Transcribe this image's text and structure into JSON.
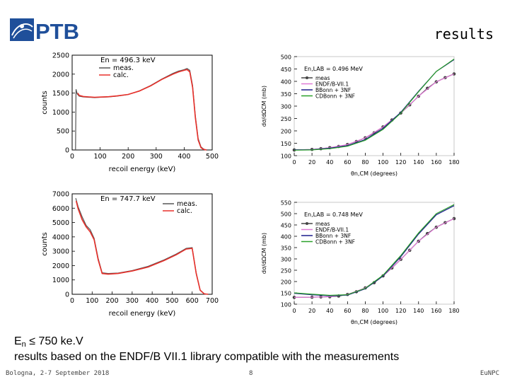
{
  "header": {
    "logo_text": "PTB",
    "title": "results",
    "colors": {
      "logo": "#1f4f9a"
    }
  },
  "captions": {
    "energy_prefix": "E",
    "energy_sub": "n",
    "energy_rest": " ≤ 750 ke.V",
    "note": "results based on the ENDF/B VII.1 library compatible with the measurements"
  },
  "footer": {
    "left": "Bologna, 2-7 September 2018",
    "page": "8",
    "right": "EuNPC"
  },
  "chart_data": [
    {
      "type": "line",
      "annotation": "En = 496.3 keV",
      "xlabel": "recoil energy (keV)",
      "ylabel": "counts",
      "xlim": [
        0,
        500
      ],
      "ylim": [
        0,
        2500
      ],
      "xticks": [
        0,
        100,
        200,
        300,
        400,
        500
      ],
      "yticks": [
        0,
        500,
        1000,
        1500,
        2000,
        2500
      ],
      "legend_position": "top-left",
      "series": [
        {
          "name": "meas.",
          "color": "#555555",
          "x": [
            12,
            14,
            18,
            25,
            40,
            60,
            80,
            100,
            130,
            160,
            200,
            240,
            280,
            320,
            360,
            380,
            400,
            410,
            420,
            430,
            440,
            450,
            460,
            470,
            480
          ],
          "y": [
            0,
            1600,
            1480,
            1420,
            1400,
            1390,
            1380,
            1390,
            1400,
            1420,
            1460,
            1560,
            1700,
            1870,
            2020,
            2080,
            2120,
            2150,
            2100,
            1700,
            900,
            300,
            80,
            20,
            0
          ]
        },
        {
          "name": "calc.",
          "color": "#e8302a",
          "x": [
            20,
            25,
            40,
            60,
            80,
            100,
            130,
            160,
            200,
            240,
            280,
            320,
            360,
            380,
            400,
            410,
            420,
            430,
            440,
            450,
            460,
            470,
            480
          ],
          "y": [
            1500,
            1440,
            1410,
            1400,
            1390,
            1395,
            1405,
            1425,
            1465,
            1555,
            1690,
            1860,
            2000,
            2060,
            2100,
            2120,
            2060,
            1650,
            850,
            260,
            60,
            15,
            0
          ]
        }
      ]
    },
    {
      "type": "line",
      "annotation": "En = 747.7 keV",
      "xlabel": "recoil energy (keV)",
      "ylabel": "counts",
      "xlim": [
        0,
        700
      ],
      "ylim": [
        0,
        7000
      ],
      "xticks": [
        0,
        100,
        200,
        300,
        400,
        500,
        600,
        700
      ],
      "yticks": [
        0,
        1000,
        2000,
        3000,
        4000,
        5000,
        6000,
        7000
      ],
      "legend_position": "top-right",
      "series": [
        {
          "name": "meas.",
          "color": "#555555",
          "x": [
            18,
            30,
            50,
            70,
            90,
            110,
            130,
            150,
            180,
            230,
            300,
            380,
            460,
            520,
            570,
            600,
            620,
            640,
            660,
            680
          ],
          "y": [
            6700,
            6100,
            5400,
            4800,
            4500,
            3900,
            2500,
            1500,
            1450,
            1480,
            1650,
            1950,
            2400,
            2800,
            3200,
            3250,
            1500,
            300,
            40,
            0
          ]
        },
        {
          "name": "calc.",
          "color": "#e8302a",
          "x": [
            20,
            30,
            50,
            70,
            90,
            110,
            130,
            150,
            180,
            230,
            300,
            380,
            460,
            520,
            570,
            600,
            620,
            640,
            660,
            680
          ],
          "y": [
            6500,
            5950,
            5200,
            4700,
            4350,
            3800,
            2400,
            1450,
            1400,
            1450,
            1620,
            1900,
            2350,
            2750,
            3150,
            3200,
            1450,
            280,
            30,
            0
          ]
        }
      ]
    },
    {
      "type": "line",
      "annotation": "En,LAB = 0.496 MeV",
      "xlabel": "θn,CM (degrees)",
      "ylabel": "dσ/dΩCM (mb)",
      "xlim": [
        0,
        180
      ],
      "ylim": [
        100,
        500
      ],
      "xticks": [
        0,
        20,
        40,
        60,
        80,
        100,
        120,
        140,
        160,
        180
      ],
      "yticks": [
        100,
        150,
        200,
        250,
        300,
        350,
        400,
        450,
        500
      ],
      "legend_position": "top-left",
      "series": [
        {
          "name": "meas",
          "color": "#444444",
          "x": [
            0,
            20,
            30,
            40,
            50,
            60,
            70,
            80,
            90,
            100,
            110,
            120,
            130,
            140,
            150,
            160,
            170,
            180
          ],
          "y": [
            123,
            125,
            128,
            132,
            137,
            145,
            157,
            172,
            192,
            216,
            244,
            272,
            305,
            340,
            372,
            398,
            415,
            430
          ]
        },
        {
          "name": "ENDF/B-VII.1",
          "color": "#e07ad6",
          "x": [
            0,
            20,
            40,
            60,
            80,
            100,
            120,
            140,
            160,
            180
          ],
          "y": [
            123,
            125,
            132,
            145,
            172,
            216,
            272,
            340,
            398,
            430
          ]
        },
        {
          "name": "BBonn + 3NF",
          "color": "#1c1c8c",
          "x": [
            0,
            20,
            40,
            60,
            80,
            100,
            120,
            140,
            160,
            180
          ],
          "y": [
            123,
            124,
            130,
            140,
            165,
            210,
            275,
            360,
            440,
            488
          ]
        },
        {
          "name": "CDBonn + 3NF",
          "color": "#2aa02a",
          "x": [
            0,
            20,
            40,
            60,
            80,
            100,
            120,
            140,
            160,
            180
          ],
          "y": [
            122,
            123,
            128,
            138,
            162,
            206,
            272,
            358,
            440,
            490
          ]
        }
      ]
    },
    {
      "type": "line",
      "annotation": "En,LAB = 0.748 MeV",
      "xlabel": "θn,CM (degrees)",
      "ylabel": "dσ/dΩCM (mb)",
      "xlim": [
        0,
        180
      ],
      "ylim": [
        100,
        550
      ],
      "xticks": [
        0,
        20,
        40,
        60,
        80,
        100,
        120,
        140,
        160,
        180
      ],
      "yticks": [
        100,
        150,
        200,
        250,
        300,
        350,
        400,
        450,
        500,
        550
      ],
      "legend_position": "top-left",
      "series": [
        {
          "name": "meas",
          "color": "#444444",
          "x": [
            0,
            20,
            30,
            40,
            50,
            60,
            70,
            80,
            90,
            100,
            110,
            120,
            130,
            140,
            150,
            160,
            170,
            180
          ],
          "y": [
            130,
            131,
            132,
            133,
            136,
            143,
            155,
            172,
            195,
            225,
            260,
            298,
            338,
            378,
            412,
            440,
            460,
            478
          ]
        },
        {
          "name": "ENDF/B-VII.1",
          "color": "#e07ad6",
          "x": [
            0,
            20,
            40,
            60,
            80,
            100,
            120,
            140,
            160,
            180
          ],
          "y": [
            130,
            131,
            133,
            143,
            172,
            225,
            298,
            378,
            440,
            478
          ]
        },
        {
          "name": "BBonn + 3NF",
          "color": "#1c1c8c",
          "x": [
            0,
            20,
            40,
            60,
            80,
            100,
            120,
            140,
            160,
            180
          ],
          "y": [
            148,
            142,
            137,
            140,
            168,
            225,
            310,
            410,
            495,
            535
          ]
        },
        {
          "name": "CDBonn + 3NF",
          "color": "#2aa02a",
          "x": [
            0,
            20,
            40,
            60,
            80,
            100,
            120,
            140,
            160,
            180
          ],
          "y": [
            150,
            144,
            139,
            142,
            170,
            228,
            315,
            415,
            500,
            540
          ]
        }
      ]
    }
  ]
}
